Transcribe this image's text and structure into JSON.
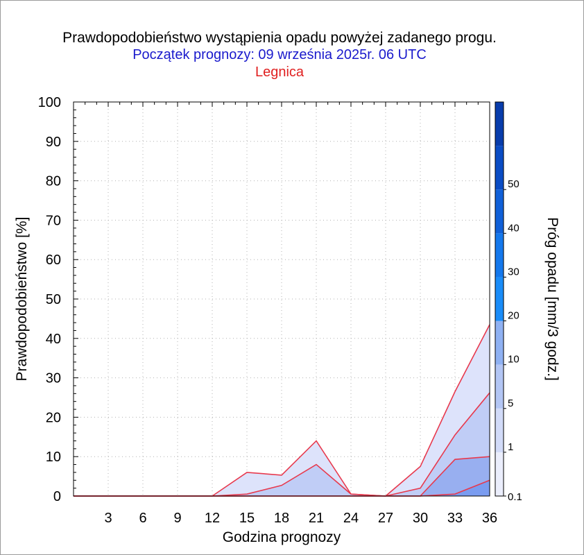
{
  "header": {
    "title": "Prawdopodobieństwo wystąpienia opadu powyżej zadanego progu.",
    "subtitle": "Początek prognozy: 09 września 2025r. 06 UTC",
    "location": "Legnica"
  },
  "colors": {
    "title": "#000000",
    "subtitle": "#1a1acc",
    "location": "#e02020",
    "series_line": "#e8394d",
    "grid": "#b0b0b0"
  },
  "chart_data": {
    "type": "area",
    "title": "Prawdopodobieństwo wystąpienia opadu powyżej zadanego progu.",
    "xlabel": "Godzina prognozy",
    "ylabel": "Prawdopodobieństwo [%]",
    "xlim": [
      0,
      36
    ],
    "ylim": [
      0,
      100
    ],
    "x_ticks": [
      3,
      6,
      9,
      12,
      15,
      18,
      21,
      24,
      27,
      30,
      33,
      36
    ],
    "y_ticks": [
      0,
      10,
      20,
      30,
      40,
      50,
      60,
      70,
      80,
      90,
      100
    ],
    "grid": true,
    "x": [
      0,
      3,
      6,
      9,
      12,
      15,
      18,
      21,
      24,
      27,
      30,
      33,
      36
    ],
    "series": [
      {
        "threshold": "0.1",
        "color": "#dde3fb",
        "values": [
          0,
          0,
          0,
          0,
          0,
          6,
          5.3,
          14,
          0.5,
          0,
          7.5,
          26.5,
          43.5
        ]
      },
      {
        "threshold": "1",
        "color": "#c0cdf6",
        "values": [
          0,
          0,
          0,
          0,
          0,
          0.5,
          2.7,
          8,
          0.5,
          0,
          2,
          15.5,
          26.2
        ]
      },
      {
        "threshold": "5",
        "color": "#98aff0",
        "values": [
          0,
          0,
          0,
          0,
          0,
          0,
          0,
          0,
          0,
          0,
          0,
          9.3,
          10
        ]
      },
      {
        "threshold": "10",
        "color": "#7a9cf0",
        "values": [
          0,
          0,
          0,
          0,
          0,
          0,
          0,
          0,
          0,
          0,
          0,
          0.5,
          4
        ]
      }
    ],
    "colorbar": {
      "label": "Próg opadu [mm/3 godz.]",
      "labels": [
        "0.1",
        "1",
        "5",
        "10",
        "20",
        "30",
        "40",
        "50"
      ],
      "colors": [
        "#ebeefc",
        "#d2dbf8",
        "#b3c6f4",
        "#8fb1f2",
        "#1a8cf8",
        "#1478ec",
        "#1060d8",
        "#0a4cc4",
        "#083cab"
      ]
    }
  }
}
